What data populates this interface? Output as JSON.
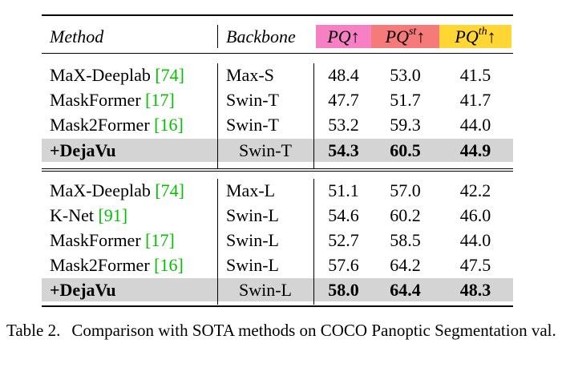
{
  "header": {
    "method": "Method",
    "backbone": "Backbone",
    "pq": "PQ↑",
    "pq_st_base": "PQ",
    "pq_st_sup": "st",
    "pq_th_base": "PQ",
    "pq_th_sup": "th",
    "arrow": "↑",
    "colors": {
      "pq": "#f77fc4",
      "pq_st": "#f77a7a",
      "pq_th": "#ffd633"
    }
  },
  "group1": [
    {
      "method": "MaX-Deeplab ",
      "ref": "[74]",
      "backbone": "Max-S",
      "pq": "48.4",
      "pq_st": "53.0",
      "pq_th": "41.5"
    },
    {
      "method": "MaskFormer ",
      "ref": "[17]",
      "backbone": "Swin-T",
      "pq": "47.7",
      "pq_st": "51.7",
      "pq_th": "41.7"
    },
    {
      "method": "Mask2Former ",
      "ref": "[16]",
      "backbone": "Swin-T",
      "pq": "53.2",
      "pq_st": "59.3",
      "pq_th": "44.0"
    }
  ],
  "highlight1": {
    "method": "+DejaVu",
    "backbone": "Swin-T",
    "pq": "54.3",
    "pq_st": "60.5",
    "pq_th": "44.9"
  },
  "group2": [
    {
      "method": "MaX-Deeplab ",
      "ref": "[74]",
      "backbone": "Max-L",
      "pq": "51.1",
      "pq_st": "57.0",
      "pq_th": "42.2"
    },
    {
      "method": "K-Net ",
      "ref": "[91]",
      "backbone": "Swin-L",
      "pq": "54.6",
      "pq_st": "60.2",
      "pq_th": "46.0"
    },
    {
      "method": "MaskFormer ",
      "ref": "[17]",
      "backbone": "Swin-L",
      "pq": "52.7",
      "pq_st": "58.5",
      "pq_th": "44.0"
    },
    {
      "method": "Mask2Former ",
      "ref": "[16]",
      "backbone": "Swin-L",
      "pq": "57.6",
      "pq_st": "64.2",
      "pq_th": "47.5"
    }
  ],
  "highlight2": {
    "method": "+DejaVu",
    "backbone": "Swin-L",
    "pq": "58.0",
    "pq_st": "64.4",
    "pq_th": "48.3"
  },
  "caption": {
    "label": "Table 2.",
    "text": "Comparison with SOTA methods on COCO Panoptic Segmentation val."
  }
}
